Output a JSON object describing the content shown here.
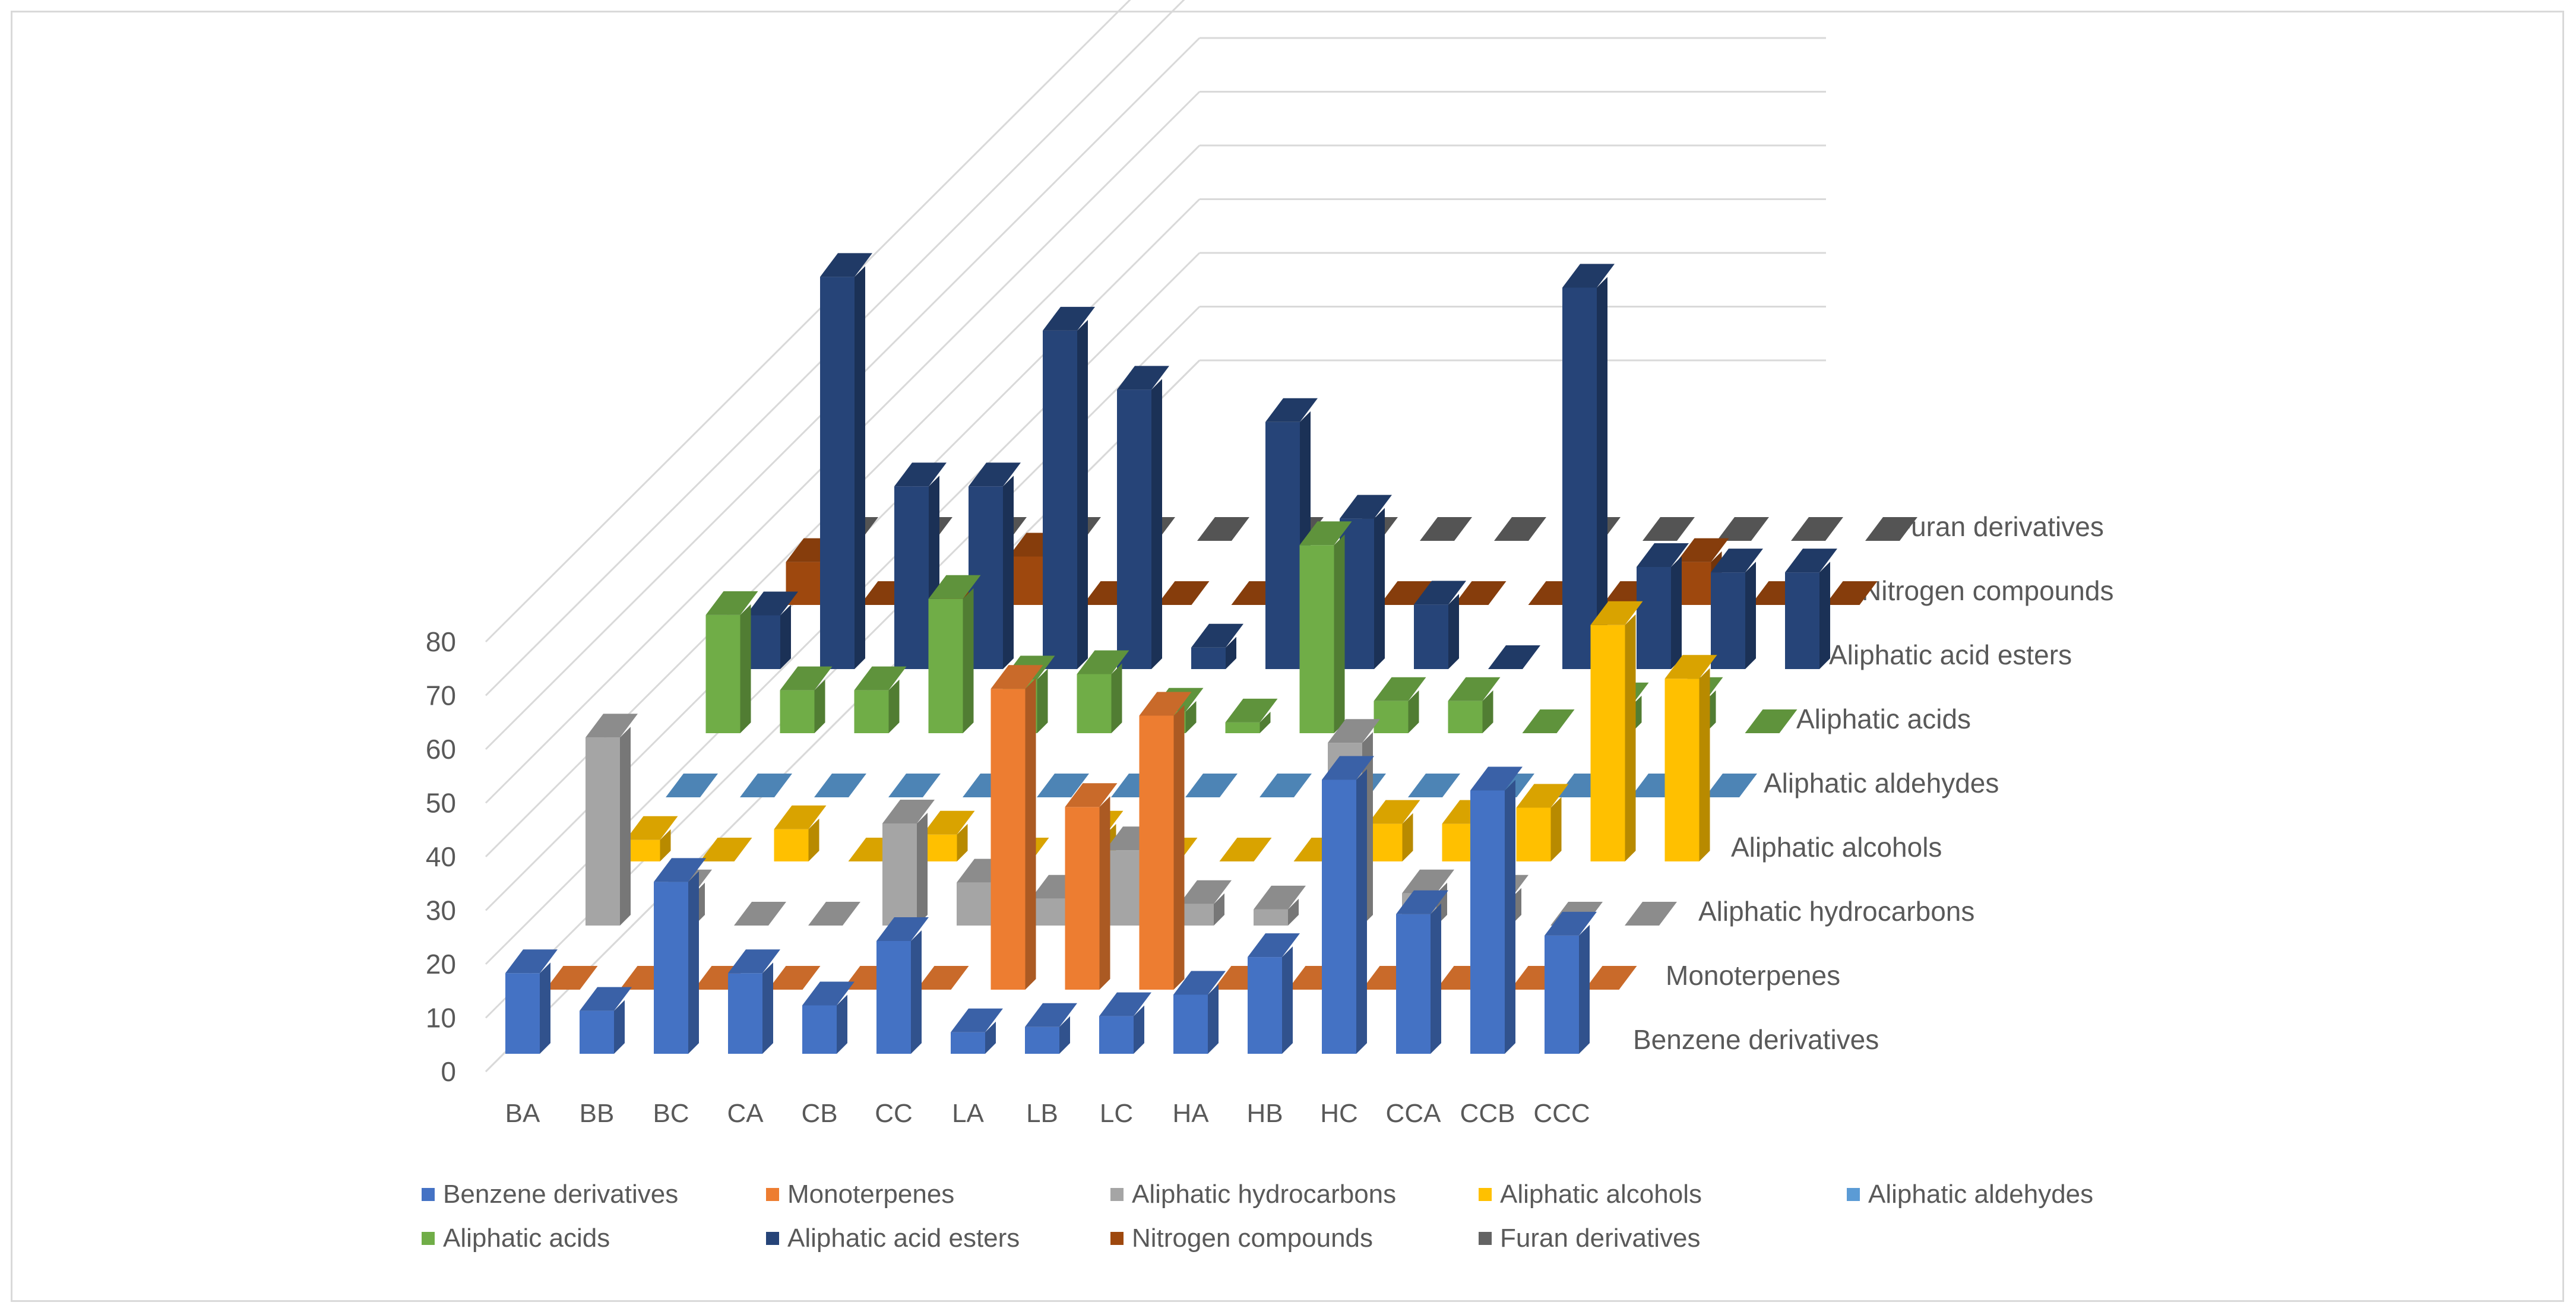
{
  "chart_data": {
    "type": "bar",
    "subtype": "3d-column",
    "title": "",
    "xlabel": "",
    "ylabel": "",
    "ylim": [
      0,
      80
    ],
    "y_ticks": [
      "0",
      "10",
      "20",
      "30",
      "40",
      "50",
      "60",
      "70",
      "80"
    ],
    "categories": [
      "BA",
      "BB",
      "BC",
      "CA",
      "CB",
      "CC",
      "LA",
      "LB",
      "LC",
      "HA",
      "HB",
      "HC",
      "CCA",
      "CCB",
      "CCC"
    ],
    "legend_position": "bottom",
    "series": [
      {
        "name": "Benzene derivatives",
        "color": "#4472c4",
        "values": [
          15,
          8,
          32,
          15,
          9,
          21,
          4,
          5,
          7,
          11,
          18,
          51,
          26,
          49,
          22
        ]
      },
      {
        "name": "Monoterpenes",
        "color": "#ed7d31",
        "values": [
          0,
          0,
          0,
          0,
          0,
          0,
          56,
          34,
          51,
          0,
          0,
          0,
          0,
          0,
          0
        ]
      },
      {
        "name": "Aliphatic hydrocarbons",
        "color": "#a5a5a5",
        "values": [
          35,
          6,
          0,
          0,
          19,
          8,
          5,
          14,
          4,
          3,
          34,
          6,
          5,
          0,
          0
        ]
      },
      {
        "name": "Aliphatic alcohols",
        "color": "#ffc000",
        "values": [
          4,
          0,
          6,
          0,
          5,
          0,
          5,
          0,
          0,
          0,
          7,
          7,
          10,
          44,
          34
        ]
      },
      {
        "name": "Aliphatic aldehydes",
        "color": "#5b9bd5",
        "values": [
          0,
          0,
          0,
          0,
          0,
          0,
          0,
          0,
          0,
          0,
          0,
          0,
          0,
          0,
          0
        ]
      },
      {
        "name": "Aliphatic acids",
        "color": "#70ad47",
        "values": [
          22,
          8,
          8,
          25,
          10,
          11,
          4,
          2,
          35,
          6,
          6,
          0,
          5,
          6,
          0
        ]
      },
      {
        "name": "Aliphatic acid esters",
        "color": "#264478",
        "values": [
          10,
          73,
          34,
          34,
          63,
          52,
          4,
          46,
          28,
          12,
          0,
          71,
          19,
          18,
          18
        ]
      },
      {
        "name": "Nitrogen compounds",
        "color": "#9e480e",
        "values": [
          8,
          0,
          0,
          9,
          0,
          0,
          0,
          0,
          0,
          0,
          0,
          0,
          8,
          0,
          0
        ]
      },
      {
        "name": "Furan derivatives",
        "color": "#636363",
        "values": [
          0,
          0,
          0,
          0,
          0,
          0,
          0,
          0,
          0,
          0,
          0,
          0,
          0,
          0,
          0
        ]
      }
    ]
  },
  "legend": {
    "rows": [
      [
        "Benzene derivatives",
        "Monoterpenes",
        "Aliphatic hydrocarbons",
        "Aliphatic alcohols",
        "Aliphatic aldehydes"
      ],
      [
        "Aliphatic acids",
        "Aliphatic acid esters",
        "Nitrogen compounds",
        "Furan derivatives"
      ]
    ]
  }
}
